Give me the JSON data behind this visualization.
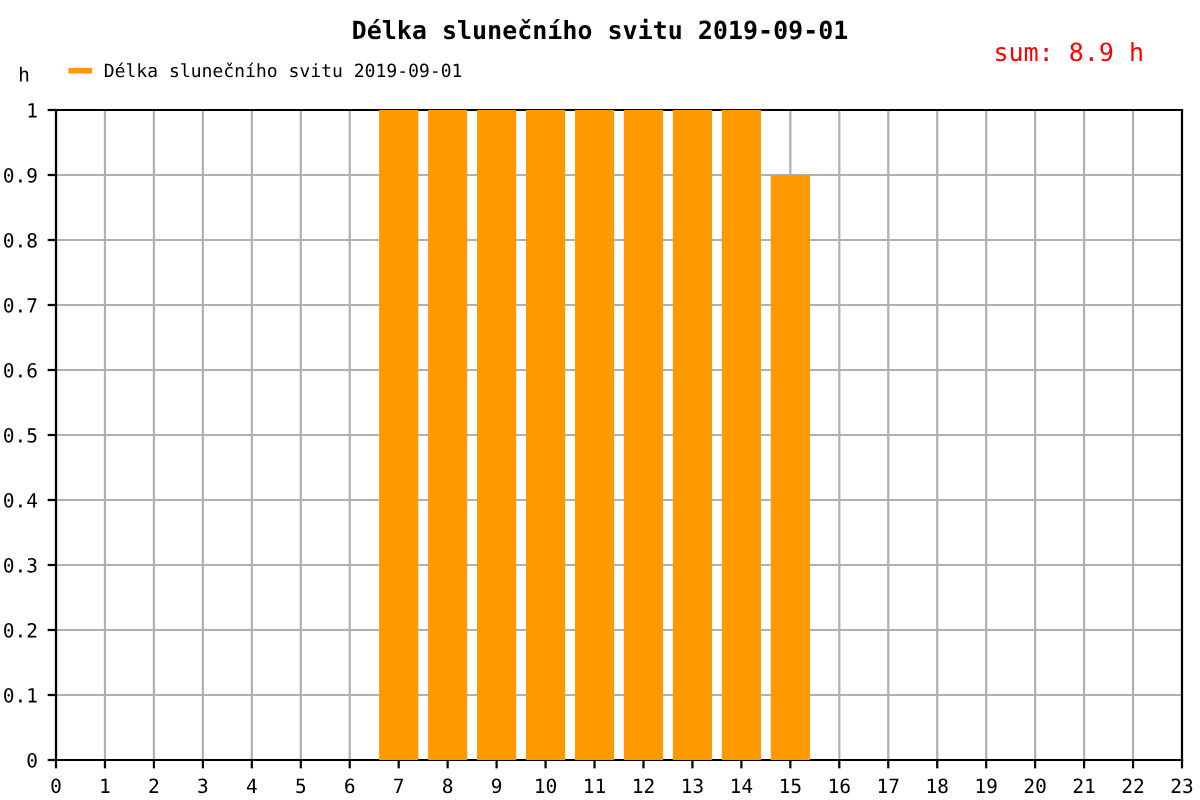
{
  "chart_data": {
    "type": "bar",
    "title": "Délka slunečního svitu 2019-09-01",
    "ylabel": "h",
    "annotations": [
      "sum: 8.9 h"
    ],
    "x": [
      7,
      8,
      9,
      10,
      11,
      12,
      13,
      14,
      15
    ],
    "series": [
      {
        "name": "Délka slunečního svitu 2019-09-01",
        "color": "#ff9900",
        "values": [
          1,
          1,
          1,
          1,
          1,
          1,
          1,
          1,
          0.9
        ]
      }
    ],
    "xlim": [
      0,
      23
    ],
    "xticks": [
      0,
      1,
      2,
      3,
      4,
      5,
      6,
      7,
      8,
      9,
      10,
      11,
      12,
      13,
      14,
      15,
      16,
      17,
      18,
      19,
      20,
      21,
      22,
      23
    ],
    "ylim": [
      0,
      1
    ],
    "yticks": [
      0,
      0.1,
      0.2,
      0.3,
      0.4,
      0.5,
      0.6,
      0.7,
      0.8,
      0.9,
      1
    ],
    "grid": true,
    "legend": "top left"
  }
}
